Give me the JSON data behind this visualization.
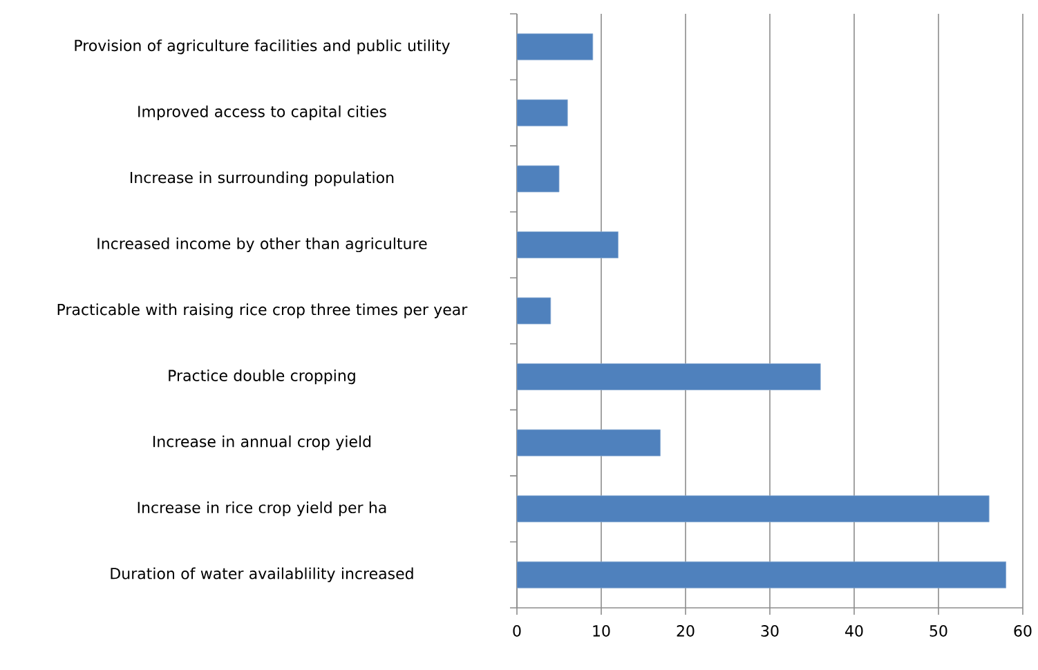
{
  "chart_data": {
    "type": "bar",
    "orientation": "horizontal",
    "categories": [
      "Provision of agriculture facilities and public utility",
      "Improved access to capital cities",
      "Increase in surrounding population",
      "Increased income by other than agriculture",
      "Practicable with raising rice crop three times per year",
      "Practice double cropping",
      "Increase in annual crop yield",
      "Increase in rice crop yield per ha",
      "Duration of water availablility  increased"
    ],
    "values": [
      9,
      6,
      5,
      12,
      4,
      36,
      17,
      56,
      58
    ],
    "color": "#4f81bd",
    "xlim": [
      0,
      60
    ],
    "xticks": [
      0,
      10,
      20,
      30,
      40,
      50,
      60
    ],
    "grid": "x"
  }
}
